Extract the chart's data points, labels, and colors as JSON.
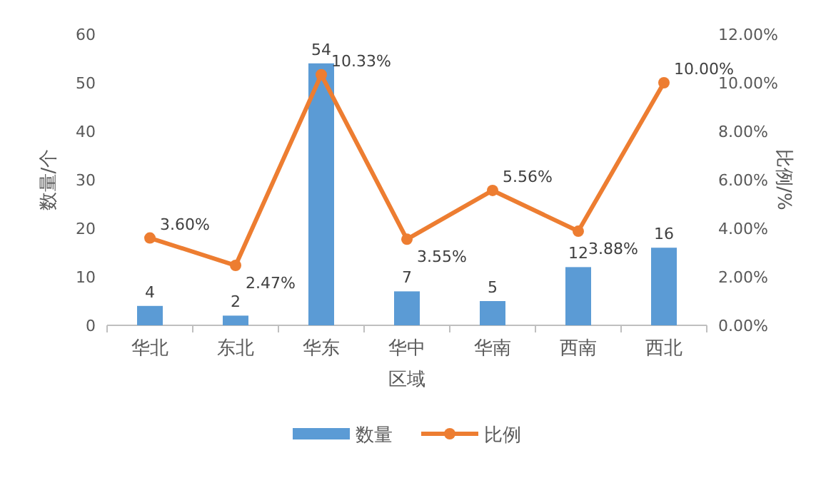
{
  "chart_data": {
    "type": "bar",
    "xlabel": "区域",
    "ylabel": "数量/个",
    "y2label": "比例/%",
    "categories": [
      "华北",
      "东北",
      "华东",
      "华中",
      "华南",
      "西南",
      "西北"
    ],
    "series": [
      {
        "name": "数量",
        "color": "#5b9bd5",
        "values": [
          4,
          2,
          54,
          7,
          5,
          12,
          16
        ],
        "value_labels": [
          "4",
          "2",
          "54",
          "7",
          "5",
          "12",
          "16"
        ]
      },
      {
        "name": "比例",
        "type": "line",
        "axis": "y2",
        "color": "#ed7d31",
        "marker": "circle",
        "values": [
          3.6,
          2.47,
          10.33,
          3.55,
          5.56,
          3.88,
          10.0
        ],
        "value_labels": [
          "3.60%",
          "2.47%",
          "10.33%",
          "3.55%",
          "5.56%",
          "3.88%",
          "10.00%"
        ]
      }
    ],
    "ylim": [
      0,
      60
    ],
    "yticks": [
      0,
      10,
      20,
      30,
      40,
      50,
      60
    ],
    "y2lim": [
      0,
      12
    ],
    "y2ticks": [
      {
        "value": 0,
        "label": "0.00%"
      },
      {
        "value": 2,
        "label": "2.00%"
      },
      {
        "value": 4,
        "label": "4.00%"
      },
      {
        "value": 6,
        "label": "6.00%"
      },
      {
        "value": 8,
        "label": "8.00%"
      },
      {
        "value": 10,
        "label": "10.00%"
      },
      {
        "value": 12,
        "label": "12.00%"
      }
    ],
    "grid": false,
    "legend": "bottom"
  }
}
